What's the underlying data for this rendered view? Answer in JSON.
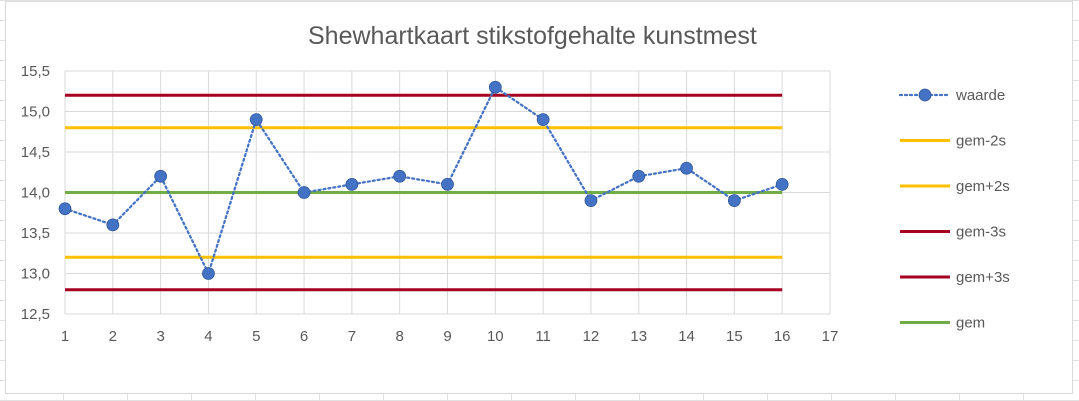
{
  "chart_data": {
    "type": "line",
    "title": "Shewhartkaart stikstofgehalte kunstmest",
    "xlabel": "",
    "ylabel": "",
    "x": [
      1,
      2,
      3,
      4,
      5,
      6,
      7,
      8,
      9,
      10,
      11,
      12,
      13,
      14,
      15,
      16
    ],
    "x_ticks": [
      "1",
      "2",
      "3",
      "4",
      "5",
      "6",
      "7",
      "8",
      "9",
      "10",
      "11",
      "12",
      "13",
      "14",
      "15",
      "16",
      "17"
    ],
    "xlim": [
      1,
      17
    ],
    "ylim": [
      12.5,
      15.5
    ],
    "y_ticks": [
      "12,5",
      "13,0",
      "13,5",
      "14,0",
      "14,5",
      "15,0",
      "15,5"
    ],
    "grid": true,
    "legend_position": "right",
    "series": [
      {
        "name": "waarde",
        "style": "dotted-markers",
        "color": "#4472c4",
        "values": [
          13.8,
          13.6,
          14.2,
          13.0,
          14.9,
          14.0,
          14.1,
          14.2,
          14.1,
          15.3,
          14.9,
          13.9,
          14.2,
          14.3,
          13.9,
          14.1
        ]
      },
      {
        "name": "gem-2s",
        "style": "solid",
        "color": "#ffc000",
        "values": [
          13.2,
          13.2,
          13.2,
          13.2,
          13.2,
          13.2,
          13.2,
          13.2,
          13.2,
          13.2,
          13.2,
          13.2,
          13.2,
          13.2,
          13.2,
          13.2
        ]
      },
      {
        "name": "gem+2s",
        "style": "solid",
        "color": "#ffc000",
        "values": [
          14.8,
          14.8,
          14.8,
          14.8,
          14.8,
          14.8,
          14.8,
          14.8,
          14.8,
          14.8,
          14.8,
          14.8,
          14.8,
          14.8,
          14.8,
          14.8
        ]
      },
      {
        "name": "gem-3s",
        "style": "solid",
        "color": "#a50021",
        "values": [
          12.8,
          12.8,
          12.8,
          12.8,
          12.8,
          12.8,
          12.8,
          12.8,
          12.8,
          12.8,
          12.8,
          12.8,
          12.8,
          12.8,
          12.8,
          12.8
        ]
      },
      {
        "name": "gem+3s",
        "style": "solid",
        "color": "#a50021",
        "values": [
          15.2,
          15.2,
          15.2,
          15.2,
          15.2,
          15.2,
          15.2,
          15.2,
          15.2,
          15.2,
          15.2,
          15.2,
          15.2,
          15.2,
          15.2,
          15.2
        ]
      },
      {
        "name": "gem",
        "style": "solid",
        "color": "#70ad47",
        "values": [
          14.0,
          14.0,
          14.0,
          14.0,
          14.0,
          14.0,
          14.0,
          14.0,
          14.0,
          14.0,
          14.0,
          14.0,
          14.0,
          14.0,
          14.0,
          14.0
        ]
      }
    ]
  }
}
